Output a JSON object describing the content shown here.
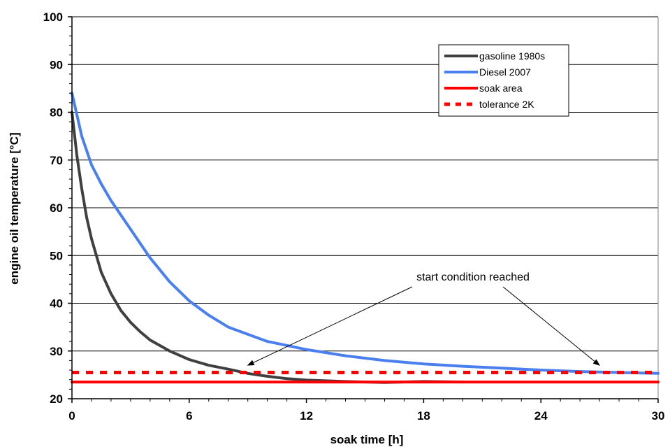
{
  "chart_data": {
    "type": "line",
    "title": "",
    "xlabel": "soak time [h]",
    "ylabel": "engine oil temperature [°C]",
    "xlim": [
      0,
      30
    ],
    "ylim": [
      20,
      100
    ],
    "x_ticks": [
      0,
      6,
      12,
      18,
      24,
      30
    ],
    "y_ticks": [
      20,
      30,
      40,
      50,
      60,
      70,
      80,
      90,
      100
    ],
    "grid": "horizontal",
    "legend_position": "top-right",
    "series": [
      {
        "name": "gasoline 1980s",
        "color": "#404040",
        "style": "solid",
        "x": [
          0,
          0.25,
          0.5,
          0.75,
          1,
          1.5,
          2,
          2.5,
          3,
          3.5,
          4,
          5,
          6,
          7,
          8,
          9,
          10,
          11,
          12,
          14,
          16,
          18,
          20
        ],
        "y": [
          80,
          71,
          64,
          58,
          53.5,
          46.5,
          42,
          38.5,
          36,
          34,
          32.3,
          30,
          28.2,
          27,
          26.2,
          25.3,
          24.7,
          24.2,
          23.9,
          23.6,
          23.4,
          23.6,
          23.5
        ]
      },
      {
        "name": "Diesel 2007",
        "color": "#4a7ff0",
        "style": "solid",
        "x": [
          0,
          0.5,
          1,
          1.5,
          2,
          3,
          4,
          5,
          6,
          7,
          8,
          9,
          10,
          12,
          14,
          16,
          18,
          20,
          22,
          24,
          26,
          28,
          30
        ],
        "y": [
          84,
          75,
          69,
          65,
          61.5,
          55.5,
          49.5,
          44.5,
          40.5,
          37.5,
          35,
          33.5,
          32,
          30.3,
          29,
          28,
          27.3,
          26.8,
          26.4,
          26,
          25.7,
          25.5,
          25.3
        ]
      },
      {
        "name": "soak area",
        "color": "#ff0000",
        "style": "solid",
        "x": [
          0,
          30
        ],
        "y": [
          23.5,
          23.5
        ]
      },
      {
        "name": "tolerance 2K",
        "color": "#ff0000",
        "style": "dashed",
        "x": [
          0,
          30
        ],
        "y": [
          25.5,
          25.5
        ]
      }
    ],
    "annotations": [
      {
        "text": "start condition reached",
        "arrows": [
          {
            "x": 9,
            "y": 27
          },
          {
            "x": 27,
            "y": 27
          }
        ]
      }
    ]
  }
}
